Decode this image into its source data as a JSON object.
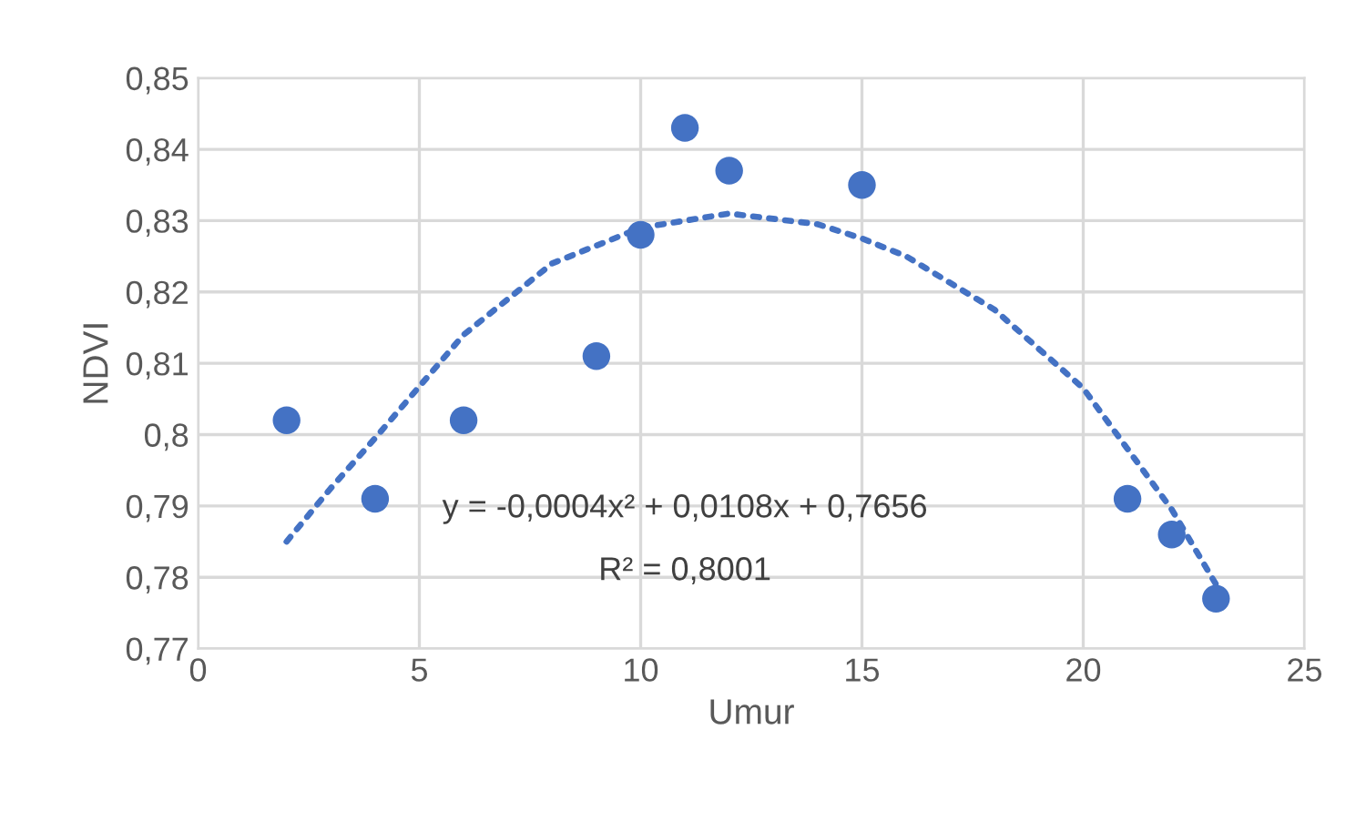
{
  "chart_data": {
    "type": "scatter",
    "xlabel": "Umur",
    "ylabel": "NDVI",
    "xlim": [
      0,
      25
    ],
    "xticks": [
      0,
      5,
      10,
      15,
      20,
      25
    ],
    "ylim": [
      0.77,
      0.85
    ],
    "yticks": [
      {
        "value": 0.77,
        "label": "0,77"
      },
      {
        "value": 0.78,
        "label": "0,78"
      },
      {
        "value": 0.79,
        "label": "0,79"
      },
      {
        "value": 0.8,
        "label": "0,8"
      },
      {
        "value": 0.81,
        "label": "0,81"
      },
      {
        "value": 0.82,
        "label": "0,82"
      },
      {
        "value": 0.83,
        "label": "0,83"
      },
      {
        "value": 0.84,
        "label": "0,84"
      },
      {
        "value": 0.85,
        "label": "0,85"
      }
    ],
    "grid": true,
    "legend": false,
    "series": [
      {
        "color": "#4472c4",
        "marker": "circle",
        "x": [
          2,
          4,
          6,
          9,
          10,
          11,
          12,
          15,
          21,
          22,
          23
        ],
        "values": [
          0.802,
          0.791,
          0.802,
          0.811,
          0.828,
          0.843,
          0.837,
          0.835,
          0.791,
          0.786,
          0.777
        ]
      },
      {
        "type": "line",
        "color": "#4472c4",
        "marker": "none",
        "line_style": "dotted",
        "x": [
          2,
          3,
          4,
          6,
          8,
          10,
          12,
          14,
          15,
          16,
          18,
          20,
          21,
          22,
          23
        ],
        "values": [
          0.785,
          0.7925,
          0.7995,
          0.814,
          0.824,
          0.829,
          0.831,
          0.8295,
          0.8275,
          0.825,
          0.8175,
          0.8065,
          0.798,
          0.7895,
          0.779
        ]
      }
    ],
    "annotations": [
      "y = -0,0004x² + 0,0108x + 0,7656",
      "R² = 0,8001"
    ]
  }
}
